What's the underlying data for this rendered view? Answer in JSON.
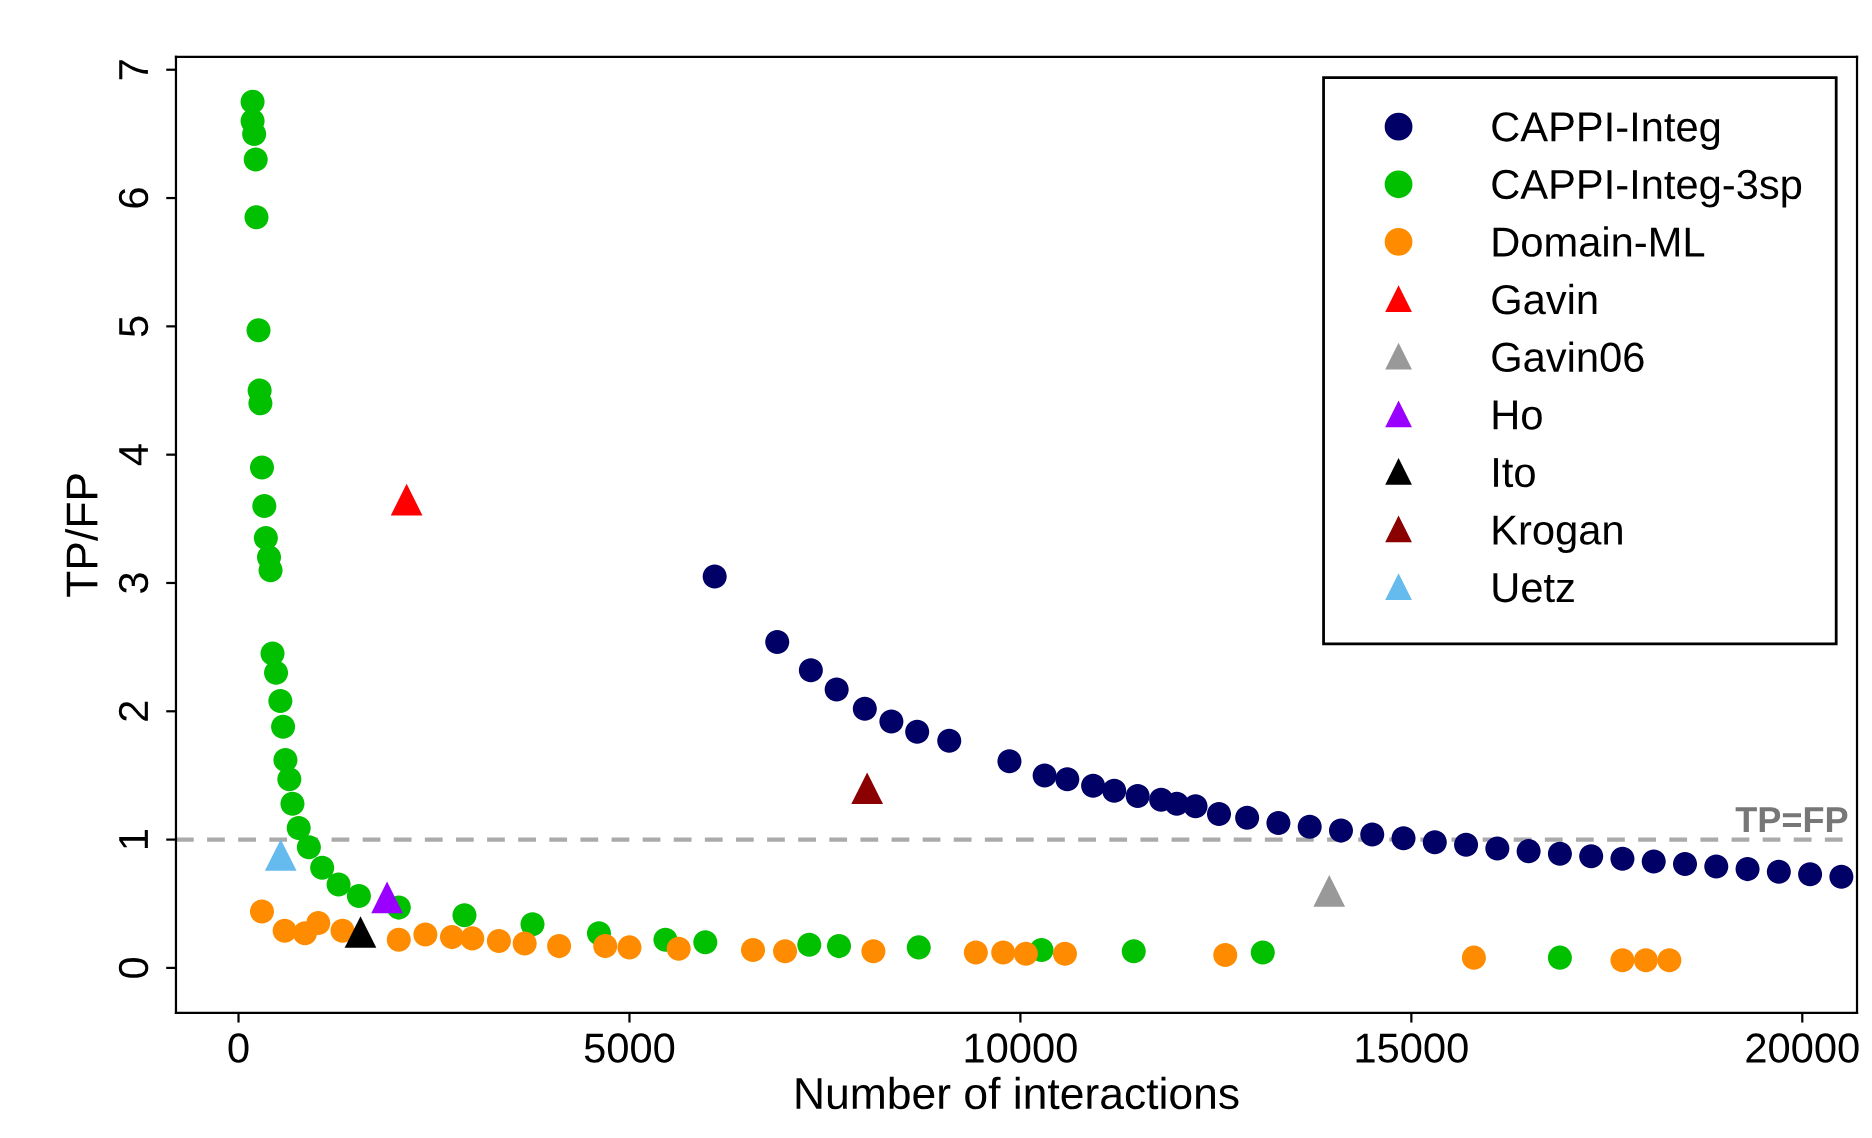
{
  "chart_data": {
    "type": "scatter",
    "xlabel": "Number of interactions",
    "ylabel": "TP/FP",
    "xlim": [
      -800,
      20700
    ],
    "ylim": [
      -0.35,
      7.1
    ],
    "xticks": [
      0,
      5000,
      10000,
      15000,
      20000
    ],
    "yticks": [
      0,
      1,
      2,
      3,
      4,
      5,
      6,
      7
    ],
    "grid": false,
    "legend": "top right",
    "ref_lines": [
      {
        "axis": "y",
        "value": 1,
        "label": "TP=FP",
        "color": "#aaaaaa",
        "line_style": "dashed"
      }
    ],
    "series": [
      {
        "name": "CAPPI-Integ",
        "color": "#000066",
        "marker": "circle",
        "x": [
          6090,
          6890,
          7320,
          7650,
          8010,
          8350,
          8680,
          9090,
          9860,
          10310,
          10600,
          10930,
          11200,
          11500,
          11800,
          12000,
          12240,
          12540,
          12900,
          13300,
          13700,
          14100,
          14500,
          14900,
          15300,
          15700,
          16100,
          16500,
          16900,
          17300,
          17700,
          18100,
          18500,
          18900,
          19300,
          19700,
          20100,
          20500
        ],
        "values": [
          3.05,
          2.54,
          2.32,
          2.17,
          2.02,
          1.92,
          1.84,
          1.77,
          1.61,
          1.5,
          1.47,
          1.42,
          1.38,
          1.34,
          1.31,
          1.28,
          1.26,
          1.2,
          1.17,
          1.13,
          1.1,
          1.07,
          1.04,
          1.01,
          0.98,
          0.96,
          0.93,
          0.91,
          0.89,
          0.87,
          0.85,
          0.83,
          0.81,
          0.79,
          0.77,
          0.75,
          0.73,
          0.71
        ]
      },
      {
        "name": "CAPPI-Integ-3sp",
        "color": "#00c000",
        "marker": "circle",
        "x": [
          180,
          180,
          200,
          220,
          230,
          256,
          270,
          280,
          300,
          330,
          350,
          390,
          410,
          435,
          480,
          535,
          570,
          600,
          650,
          690,
          770,
          900,
          1070,
          1280,
          1540,
          2050,
          2890,
          3760,
          4610,
          5460,
          5970,
          7300,
          7680,
          8700,
          10270,
          11450,
          13100,
          16900
        ],
        "values": [
          6.75,
          6.6,
          6.5,
          6.3,
          5.85,
          4.97,
          4.5,
          4.4,
          3.9,
          3.6,
          3.35,
          3.2,
          3.1,
          2.45,
          2.3,
          2.08,
          1.88,
          1.62,
          1.47,
          1.28,
          1.09,
          0.94,
          0.78,
          0.65,
          0.56,
          0.47,
          0.41,
          0.34,
          0.27,
          0.22,
          0.2,
          0.18,
          0.17,
          0.16,
          0.14,
          0.13,
          0.12,
          0.08
        ]
      },
      {
        "name": "Domain-ML",
        "color": "#ff8c00",
        "marker": "circle",
        "x": [
          300,
          590,
          850,
          1020,
          1330,
          2050,
          2390,
          2730,
          2990,
          3330,
          3660,
          4100,
          4690,
          5000,
          5630,
          6580,
          6990,
          8120,
          9430,
          9780,
          10070,
          10570,
          12620,
          15800,
          17700,
          18000,
          18300
        ],
        "values": [
          0.44,
          0.29,
          0.27,
          0.35,
          0.29,
          0.22,
          0.26,
          0.24,
          0.23,
          0.21,
          0.19,
          0.17,
          0.17,
          0.16,
          0.15,
          0.14,
          0.13,
          0.13,
          0.12,
          0.12,
          0.11,
          0.11,
          0.1,
          0.08,
          0.06,
          0.06,
          0.06
        ]
      },
      {
        "name": "Gavin",
        "color": "#ff0000",
        "marker": "triangle",
        "x": [
          2150
        ],
        "values": [
          3.65
        ]
      },
      {
        "name": "Gavin06",
        "color": "#999999",
        "marker": "triangle",
        "x": [
          13950
        ],
        "values": [
          0.6
        ]
      },
      {
        "name": "Ho",
        "color": "#9900ff",
        "marker": "triangle",
        "x": [
          1900
        ],
        "values": [
          0.55
        ]
      },
      {
        "name": "Ito",
        "color": "#000000",
        "marker": "triangle",
        "x": [
          1560
        ],
        "values": [
          0.28
        ]
      },
      {
        "name": "Krogan",
        "color": "#8b0000",
        "marker": "triangle",
        "x": [
          8040
        ],
        "values": [
          1.4
        ]
      },
      {
        "name": "Uetz",
        "color": "#66bbee",
        "marker": "triangle",
        "x": [
          540
        ],
        "values": [
          0.88
        ]
      }
    ]
  }
}
